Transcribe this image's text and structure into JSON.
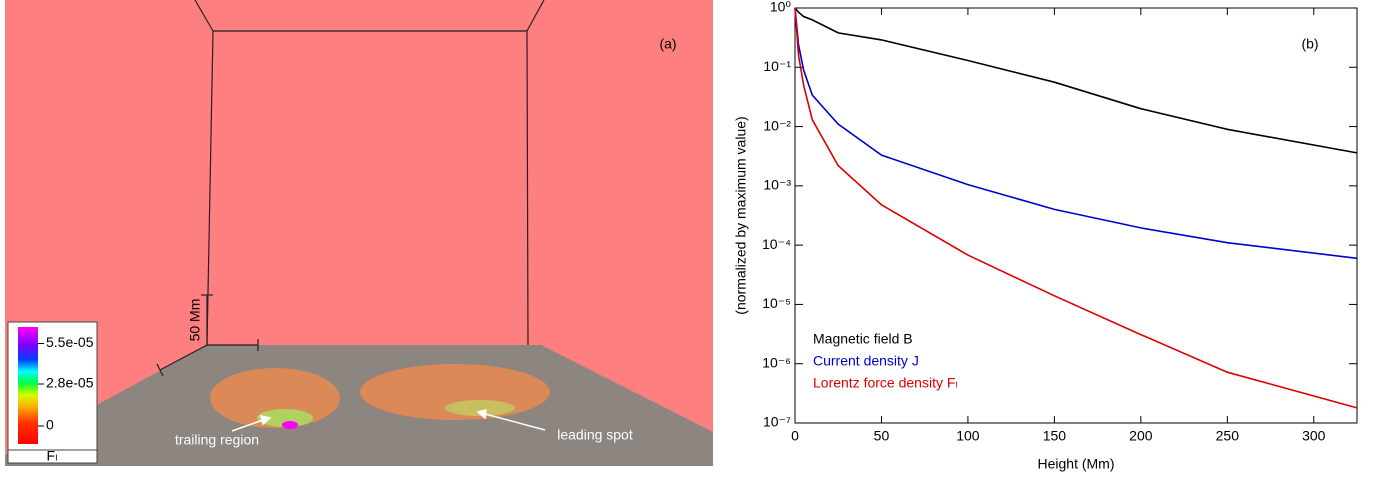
{
  "panel_a": {
    "label": "(a)",
    "scale_bar": "50 Mm",
    "colorbar": {
      "title": "Fₗ",
      "lim": [
        -1.2e-05,
        6.6e-05
      ],
      "ticks": [
        {
          "value": 5.5e-05,
          "label": "5.5e-05"
        },
        {
          "value": 2.8e-05,
          "label": "2.8e-05"
        },
        0
      ]
    },
    "annotations": [
      "trailing region",
      "leading spot"
    ]
  },
  "chart_data": {
    "type": "line",
    "panel_label": "(b)",
    "xlabel": "Height (Mm)",
    "ylabel": "(normalized by maximum value)",
    "x": [
      0,
      2,
      5,
      10,
      25,
      50,
      100,
      150,
      200,
      250,
      325
    ],
    "series": [
      {
        "name": "Magnetic field B",
        "color": "#000000",
        "values": [
          1,
          0.85,
          0.72,
          0.63,
          0.38,
          0.29,
          0.13,
          0.056,
          0.02,
          0.009,
          0.0036
        ]
      },
      {
        "name": "Current density J",
        "color": "#0000cc",
        "values": [
          1,
          0.24,
          0.09,
          0.034,
          0.011,
          0.0033,
          0.00105,
          0.0004,
          0.000195,
          0.00011,
          6e-05
        ]
      },
      {
        "name": "Lorentz force density Fₗ",
        "color": "#dd0000",
        "values": [
          1,
          0.16,
          0.05,
          0.013,
          0.0022,
          0.00048,
          6.8e-05,
          1.4e-05,
          3.1e-06,
          7.2e-07,
          1.8e-07
        ]
      }
    ],
    "xlim": [
      0,
      325
    ],
    "xticks": [
      0,
      50,
      100,
      150,
      200,
      250,
      300
    ],
    "ylim": [
      1e-07,
      1
    ],
    "log_y": true,
    "yticks": [
      {
        "value": 1,
        "label": "10⁰"
      },
      {
        "value": 0.1,
        "label": "10⁻¹"
      },
      {
        "value": 0.01,
        "label": "10⁻²"
      },
      {
        "value": 0.001,
        "label": "10⁻³"
      },
      {
        "value": 0.0001,
        "label": "10⁻⁴"
      },
      {
        "value": 1e-05,
        "label": "10⁻⁵"
      },
      {
        "value": 1e-06,
        "label": "10⁻⁶"
      },
      {
        "value": 1e-07,
        "label": "10⁻⁷"
      }
    ]
  }
}
